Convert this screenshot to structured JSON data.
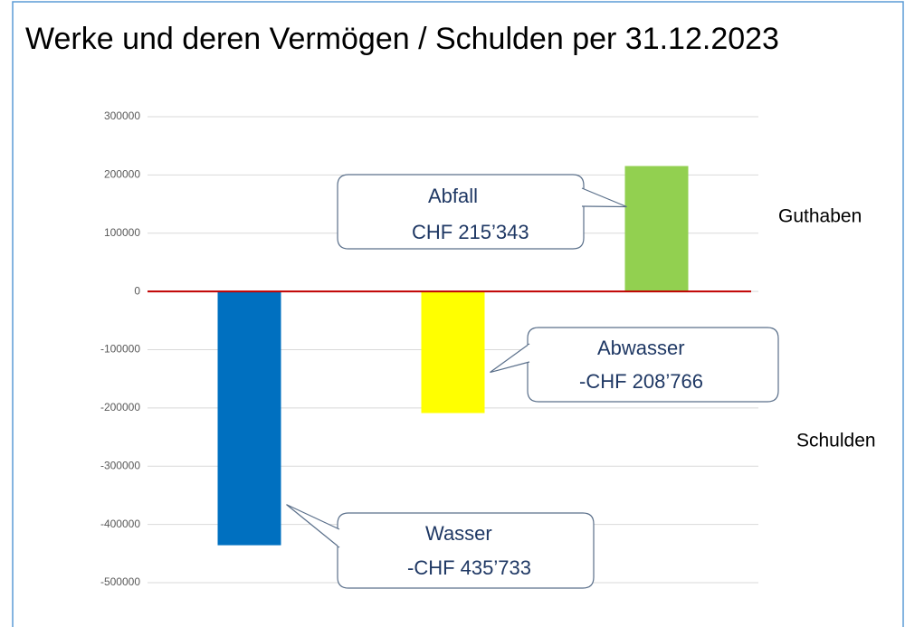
{
  "chart_data": {
    "type": "bar",
    "title": "Werke und deren Vermögen / Schulden per 31.12.2023",
    "categories": [
      "Wasser",
      "Abwasser",
      "Abfall"
    ],
    "values": [
      -435733,
      -208766,
      215343
    ],
    "value_labels": [
      "-CHF 435’733",
      "-CHF 208’766",
      "CHF 215’343"
    ],
    "colors": [
      "#0070c0",
      "#ffff00",
      "#92d050"
    ],
    "ylim": [
      -500000,
      300000
    ],
    "yticks": [
      -500000,
      -400000,
      -300000,
      -200000,
      -100000,
      0,
      100000,
      200000,
      300000
    ],
    "grid": true,
    "annotations": [
      "Guthaben",
      "Schulden"
    ]
  }
}
